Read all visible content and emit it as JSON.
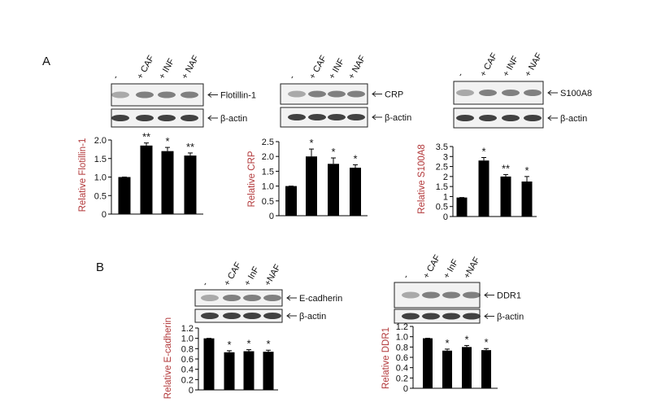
{
  "panel_labels": [
    "A",
    "B"
  ],
  "blots": [
    {
      "lanes": [
        "-",
        "+ CAF",
        "+ INF",
        "+ NAF"
      ],
      "protein": "Flotillin-1",
      "control": "β-actin"
    },
    {
      "lanes": [
        "-",
        "+ CAF",
        "+ INF",
        "+ NAF"
      ],
      "protein": "CRP",
      "control": "β-actin"
    },
    {
      "lanes": [
        "-",
        "+ CAF",
        "+ INF",
        "+ NAF"
      ],
      "protein": "S100A8",
      "control": "β-actin"
    },
    {
      "lanes": [
        "-",
        "+ CAF",
        "+ InF",
        "+NAF"
      ],
      "protein": "E-cadherin",
      "control": "β-actin"
    },
    {
      "lanes": [
        "-",
        "+ CAF",
        "+ InF",
        "+NAF"
      ],
      "protein": "DDR1",
      "control": "β-actin"
    }
  ],
  "chart_data": [
    {
      "type": "bar",
      "ylabel": "Relative Flotillin-1",
      "color": "#000000",
      "values": [
        1.0,
        1.85,
        1.7,
        1.58
      ],
      "errors": [
        0,
        0.07,
        0.1,
        0.07
      ],
      "annotations": [
        null,
        "**",
        "*",
        "**"
      ],
      "ylim": [
        0,
        2
      ],
      "yticks": [
        0,
        0.5,
        {
          "value": 1,
          "label": "1.0"
        },
        1.5,
        {
          "value": 2,
          "label": "2.0"
        }
      ]
    },
    {
      "type": "bar",
      "ylabel": "Relative CRP",
      "color": "#000000",
      "values": [
        1.0,
        2.0,
        1.75,
        1.62
      ],
      "errors": [
        0,
        0.25,
        0.2,
        0.1
      ],
      "annotations": [
        null,
        "*",
        "*",
        "*"
      ],
      "ylim": [
        0,
        2.5
      ],
      "yticks": [
        0,
        0.5,
        {
          "value": 1,
          "label": "1.0"
        },
        1.5,
        {
          "value": 2,
          "label": "2.0"
        },
        2.5
      ]
    },
    {
      "type": "bar",
      "ylabel": "Relative S100A8",
      "color": "#000000",
      "values": [
        0.95,
        2.8,
        2.0,
        1.75
      ],
      "errors": [
        0,
        0.15,
        0.1,
        0.25
      ],
      "annotations": [
        null,
        "*",
        "**",
        "*"
      ],
      "ylim": [
        0,
        3.5
      ],
      "yticks": [
        0,
        0.5,
        1,
        1.5,
        2,
        2.5,
        3,
        3.5
      ]
    },
    {
      "type": "bar",
      "ylabel": "Relative E-cadherin",
      "color": "#000000",
      "values": [
        1.0,
        0.73,
        0.75,
        0.74
      ],
      "errors": [
        0,
        0.03,
        0.03,
        0.03
      ],
      "annotations": [
        null,
        "*",
        "*",
        "*"
      ],
      "ylim": [
        0,
        1.2
      ],
      "yticks": [
        0,
        0.2,
        0.4,
        0.6,
        0.8,
        {
          "value": 1,
          "label": "1.0"
        },
        1.2
      ]
    },
    {
      "type": "bar",
      "ylabel": "Relative DDR1",
      "color": "#000000",
      "values": [
        0.97,
        0.73,
        0.8,
        0.74
      ],
      "errors": [
        0,
        0.03,
        0.03,
        0.03
      ],
      "annotations": [
        null,
        "*",
        "*",
        "*"
      ],
      "ylim": [
        0,
        1.2
      ],
      "yticks": [
        0,
        0.2,
        0.4,
        0.6,
        0.8,
        {
          "value": 1,
          "label": "1.0"
        },
        1.2
      ]
    }
  ]
}
